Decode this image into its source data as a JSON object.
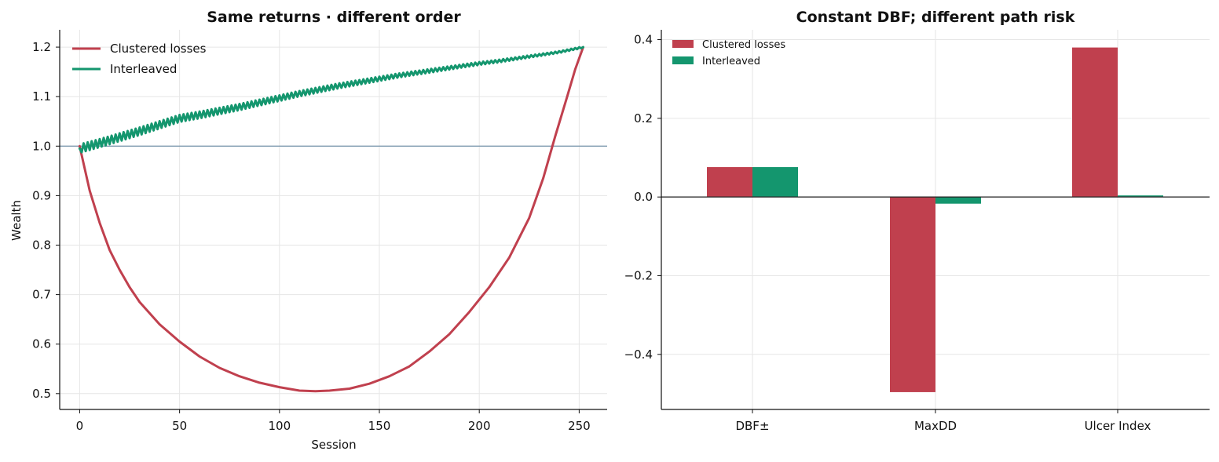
{
  "colors": {
    "clustered": "#c0404e",
    "interleaved": "#14966e",
    "baseline": "#7f9bb0",
    "zero": "#222222"
  },
  "chart_data": [
    {
      "type": "line",
      "title": "Same returns · different order",
      "xlabel": "Session",
      "ylabel": "Wealth",
      "xlim": [
        -10,
        264
      ],
      "ylim": [
        0.468,
        1.235
      ],
      "xticks": [
        0,
        50,
        100,
        150,
        200,
        250
      ],
      "yticks": [
        0.5,
        0.6,
        0.7,
        0.8,
        0.9,
        1.0,
        1.1,
        1.2
      ],
      "xtick_labels": [
        "0",
        "50",
        "100",
        "150",
        "200",
        "250"
      ],
      "ytick_labels": [
        "0.5",
        "0.6",
        "0.7",
        "0.8",
        "0.9",
        "1.0",
        "1.1",
        "1.2"
      ],
      "grid": true,
      "legend": "top-left",
      "hline": 1.0,
      "series": [
        {
          "name": "Clustered losses",
          "color": "#c0404e",
          "x": [
            0,
            5,
            10,
            15,
            20,
            25,
            30,
            40,
            50,
            60,
            70,
            80,
            90,
            100,
            110,
            118,
            125,
            135,
            145,
            155,
            165,
            175,
            185,
            195,
            205,
            215,
            225,
            232,
            238,
            244,
            248,
            252
          ],
          "y": [
            1.0,
            0.91,
            0.845,
            0.79,
            0.75,
            0.715,
            0.685,
            0.64,
            0.605,
            0.575,
            0.552,
            0.535,
            0.522,
            0.513,
            0.506,
            0.505,
            0.506,
            0.51,
            0.52,
            0.535,
            0.555,
            0.585,
            0.62,
            0.665,
            0.715,
            0.775,
            0.855,
            0.935,
            1.02,
            1.1,
            1.155,
            1.2
          ]
        },
        {
          "name": "Interleaved",
          "color": "#14966e",
          "x": [
            0,
            10,
            20,
            30,
            40,
            50,
            60,
            70,
            80,
            90,
            100,
            110,
            120,
            130,
            140,
            150,
            160,
            170,
            180,
            190,
            200,
            210,
            220,
            230,
            240,
            252
          ],
          "y": [
            0.995,
            1.006,
            1.018,
            1.03,
            1.043,
            1.056,
            1.063,
            1.071,
            1.079,
            1.088,
            1.097,
            1.106,
            1.114,
            1.122,
            1.129,
            1.136,
            1.143,
            1.149,
            1.155,
            1.161,
            1.167,
            1.172,
            1.178,
            1.184,
            1.19,
            1.2
          ]
        }
      ]
    },
    {
      "type": "bar",
      "title": "Constant DBF; different path risk",
      "categories": [
        "DBF±",
        "MaxDD",
        "Ulcer Index"
      ],
      "ylim": [
        -0.54,
        0.425
      ],
      "yticks": [
        -0.4,
        -0.2,
        0.0,
        0.2,
        0.4
      ],
      "ytick_labels": [
        "−0.4",
        "−0.2",
        "0.0",
        "0.2",
        "0.4"
      ],
      "grid": true,
      "legend": "top-left",
      "series": [
        {
          "name": "Clustered losses",
          "color": "#c0404e",
          "values": [
            0.076,
            -0.496,
            0.38
          ]
        },
        {
          "name": "Interleaved",
          "color": "#14966e",
          "values": [
            0.076,
            -0.017,
            0.004
          ]
        }
      ]
    }
  ]
}
